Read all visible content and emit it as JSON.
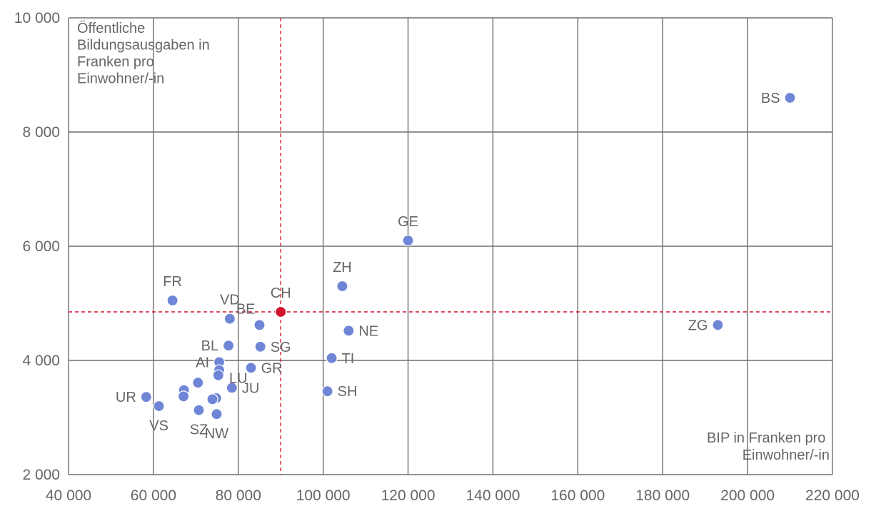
{
  "chart_data": {
    "type": "scatter",
    "title": "",
    "xlabel": [
      "BIP in Franken pro",
      "Einwohner/-in"
    ],
    "ylabel": [
      "Öffentliche",
      "Bildungsausgaben in",
      "Franken pro",
      "Einwohner/-in"
    ],
    "xlim": [
      40000,
      220000
    ],
    "ylim": [
      2000,
      10000
    ],
    "x_ticks": [
      40000,
      60000,
      80000,
      100000,
      120000,
      140000,
      160000,
      180000,
      200000,
      220000
    ],
    "x_tick_labels": [
      "40 000",
      "60 000",
      "80 000",
      "100 000",
      "120 000",
      "140 000",
      "160 000",
      "180 000",
      "200 000",
      "220 000"
    ],
    "y_ticks": [
      2000,
      4000,
      6000,
      8000,
      10000
    ],
    "y_tick_labels": [
      "2 000",
      "4 000",
      "6 000",
      "8 000",
      "10 000"
    ],
    "grid": true,
    "point_color": "#6f86d6",
    "highlight_color": "#d4132b",
    "points": [
      {
        "label": "BS",
        "x": 210000,
        "y": 8600,
        "pos": "left"
      },
      {
        "label": "GE",
        "x": 120000,
        "y": 6100,
        "pos": "above"
      },
      {
        "label": "ZH",
        "x": 104500,
        "y": 5300,
        "pos": "above"
      },
      {
        "label": "FR",
        "x": 64500,
        "y": 5050,
        "pos": "above"
      },
      {
        "label": "VD",
        "x": 78000,
        "y": 4730,
        "pos": "above"
      },
      {
        "label": "BE",
        "x": 85000,
        "y": 4620,
        "pos": "aboveleft"
      },
      {
        "label": "NE",
        "x": 106000,
        "y": 4520,
        "pos": "right"
      },
      {
        "label": "ZG",
        "x": 193000,
        "y": 4620,
        "pos": "left"
      },
      {
        "label": "BL",
        "x": 77700,
        "y": 4260,
        "pos": "left"
      },
      {
        "label": "SG",
        "x": 85200,
        "y": 4240,
        "pos": "right"
      },
      {
        "label": "TI",
        "x": 102000,
        "y": 4040,
        "pos": "right"
      },
      {
        "label": "AI",
        "x": 75500,
        "y": 3970,
        "pos": "left"
      },
      {
        "label": "GR",
        "x": 83000,
        "y": 3870,
        "pos": "right"
      },
      {
        "label": "LU",
        "x": 75500,
        "y": 3830,
        "pos": "rightbelow"
      },
      {
        "label": "",
        "x": 75300,
        "y": 3740,
        "pos": "none"
      },
      {
        "label": "JU",
        "x": 78500,
        "y": 3520,
        "pos": "right"
      },
      {
        "label": "",
        "x": 70500,
        "y": 3610,
        "pos": "none"
      },
      {
        "label": "",
        "x": 67200,
        "y": 3480,
        "pos": "none"
      },
      {
        "label": "",
        "x": 67100,
        "y": 3370,
        "pos": "none"
      },
      {
        "label": "SH",
        "x": 101000,
        "y": 3460,
        "pos": "right"
      },
      {
        "label": "UR",
        "x": 58300,
        "y": 3360,
        "pos": "left"
      },
      {
        "label": "",
        "x": 74800,
        "y": 3340,
        "pos": "none"
      },
      {
        "label": "",
        "x": 73900,
        "y": 3320,
        "pos": "none"
      },
      {
        "label": "VS",
        "x": 61300,
        "y": 3200,
        "pos": "below"
      },
      {
        "label": "SZ",
        "x": 70700,
        "y": 3130,
        "pos": "below"
      },
      {
        "label": "NW",
        "x": 74900,
        "y": 3060,
        "pos": "below"
      }
    ],
    "reference": {
      "label": "CH",
      "x": 90000,
      "y": 4850,
      "pos": "above"
    }
  }
}
